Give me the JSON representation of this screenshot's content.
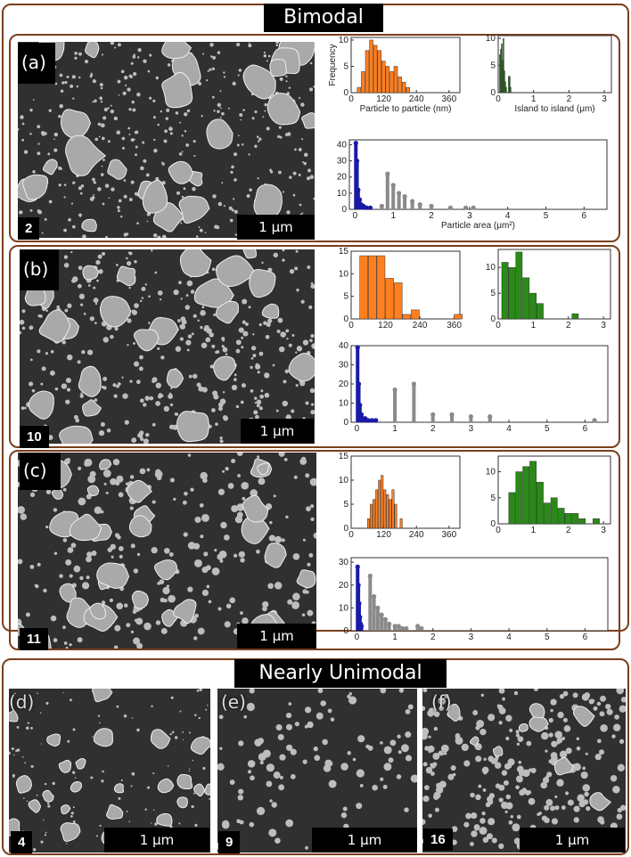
{
  "bimodal_title": "Bimodal",
  "unimodal_title": "Nearly Unimodal",
  "panels": {
    "a": {
      "label": "(a)",
      "sample": "2",
      "scale": "1 μm"
    },
    "b": {
      "label": "(b)",
      "sample": "10",
      "scale": "1 μm"
    },
    "c": {
      "label": "(c)",
      "sample": "11",
      "scale": "1 μm"
    },
    "d": {
      "label": "(d)",
      "sample": "4",
      "scale": "1 μm"
    },
    "e": {
      "label": "(e)",
      "sample": "9",
      "scale": "1 μm"
    },
    "f": {
      "label": "(f)",
      "sample": "16",
      "scale": "1 μm"
    }
  },
  "colors": {
    "frame": "#7a3e1c",
    "particle": "#ff7f1e",
    "island": "#2a8a17",
    "small_area": "#1a1aa8",
    "large_area": "#8a8a8a"
  },
  "chart_data": [
    {
      "id": "a-ptp",
      "type": "bar",
      "row": "a",
      "color": "particle",
      "xlabel": "Particle to particle (nm)",
      "ylabel": "Frequency",
      "xlim": [
        0,
        400
      ],
      "ylim": [
        0,
        10.5
      ],
      "xticks": [
        0,
        120,
        240,
        360
      ],
      "yticks": [
        0,
        5,
        10
      ],
      "bin_width": 15,
      "x": [
        30,
        45,
        60,
        75,
        90,
        105,
        120,
        135,
        150,
        165,
        180,
        195,
        210
      ],
      "values": [
        1,
        4,
        8,
        10,
        9,
        8,
        6,
        5,
        4,
        5,
        3,
        2,
        1
      ]
    },
    {
      "id": "a-iti",
      "type": "bar",
      "row": "a",
      "color": "island",
      "xlabel": "Island to island (μm)",
      "ylabel": "",
      "xlim": [
        0,
        3.2
      ],
      "ylim": [
        0,
        10.5
      ],
      "xticks": [
        0,
        1,
        2,
        3
      ],
      "yticks": [
        0,
        5,
        10
      ],
      "bin_width": 0.025,
      "x": [
        0.05,
        0.075,
        0.1,
        0.125,
        0.15,
        0.175,
        0.2,
        0.225,
        0.3,
        0.325,
        0.35
      ],
      "values": [
        7,
        8,
        9,
        6,
        10,
        4,
        2,
        1,
        3,
        3,
        1
      ]
    },
    {
      "id": "a-area",
      "type": "scatter-stem",
      "row": "a",
      "xlabel": "Particle area (μm²)",
      "ylabel": "",
      "xlim": [
        -0.15,
        6.6
      ],
      "ylim": [
        0,
        43
      ],
      "xticks": [
        0,
        1,
        2,
        3,
        4,
        5,
        6
      ],
      "yticks": [
        0,
        10,
        20,
        30,
        40
      ],
      "series": [
        {
          "color": "small_area",
          "x": [
            0.02,
            0.05,
            0.08,
            0.12,
            0.16,
            0.22,
            0.3,
            0.4
          ],
          "values": [
            41,
            30,
            12,
            6,
            3,
            2,
            1,
            1
          ]
        },
        {
          "color": "large_area",
          "x": [
            0.7,
            0.85,
            1.0,
            1.15,
            1.3,
            1.5,
            1.7,
            2.0,
            2.5,
            2.9,
            3.1
          ],
          "values": [
            2,
            22,
            15,
            10,
            8,
            5,
            3,
            2,
            1,
            1,
            1
          ]
        }
      ]
    },
    {
      "id": "b-ptp",
      "type": "bar",
      "row": "b",
      "color": "particle",
      "xlabel": "",
      "ylabel": "",
      "xlim": [
        0,
        380
      ],
      "ylim": [
        0,
        15
      ],
      "xticks": [
        0,
        120,
        240,
        360
      ],
      "yticks": [
        0,
        5,
        10,
        15
      ],
      "bin_width": 30,
      "x": [
        45,
        75,
        105,
        135,
        165,
        195,
        225,
        255,
        285,
        315,
        345,
        375
      ],
      "values": [
        14,
        14,
        14,
        9,
        8,
        1,
        2,
        0,
        0,
        0,
        0,
        1
      ]
    },
    {
      "id": "b-iti",
      "type": "bar",
      "row": "b",
      "color": "island",
      "xlabel": "",
      "ylabel": "",
      "xlim": [
        0,
        3.2
      ],
      "ylim": [
        0,
        13.5
      ],
      "xticks": [
        0,
        1,
        2,
        3
      ],
      "yticks": [
        0,
        5,
        10
      ],
      "bin_width": 0.2,
      "x": [
        0.2,
        0.4,
        0.6,
        0.8,
        1.0,
        1.2,
        1.4,
        1.6,
        1.8,
        2.0,
        2.2
      ],
      "values": [
        11,
        10,
        13,
        8,
        5,
        3,
        0,
        0,
        0,
        0,
        1
      ]
    },
    {
      "id": "b-area",
      "type": "scatter-stem",
      "row": "b",
      "xlabel": "",
      "ylabel": "",
      "xlim": [
        -0.15,
        6.6
      ],
      "ylim": [
        0,
        40
      ],
      "xticks": [
        0,
        1,
        2,
        3,
        4,
        5,
        6
      ],
      "yticks": [
        0,
        10,
        20,
        30,
        40
      ],
      "series": [
        {
          "color": "small_area",
          "x": [
            0.02,
            0.05,
            0.08,
            0.12,
            0.16,
            0.22,
            0.3,
            0.4,
            0.5
          ],
          "values": [
            39,
            20,
            9,
            4,
            2,
            2,
            1,
            1,
            1
          ]
        },
        {
          "color": "large_area",
          "x": [
            1.0,
            1.5,
            2.0,
            2.5,
            3.0,
            3.5,
            6.25
          ],
          "values": [
            17,
            20,
            4,
            4,
            3,
            3,
            1
          ]
        }
      ]
    },
    {
      "id": "c-ptp",
      "type": "bar",
      "row": "c",
      "color": "particle",
      "xlabel": "",
      "ylabel": "",
      "xlim": [
        0,
        400
      ],
      "ylim": [
        0,
        15
      ],
      "xticks": [
        0,
        120,
        240,
        360
      ],
      "yticks": [
        0,
        5,
        10,
        15
      ],
      "bin_width": 10,
      "x": [
        65,
        75,
        85,
        95,
        105,
        115,
        125,
        135,
        145,
        155,
        165,
        185
      ],
      "values": [
        2,
        5,
        6,
        8,
        10,
        11,
        8,
        7,
        6,
        8,
        5,
        2
      ]
    },
    {
      "id": "c-iti",
      "type": "bar",
      "row": "c",
      "color": "island",
      "xlabel": "",
      "ylabel": "",
      "xlim": [
        0,
        3.2
      ],
      "ylim": [
        0,
        13
      ],
      "xticks": [
        0,
        1,
        2,
        3
      ],
      "yticks": [
        0,
        5,
        10
      ],
      "bin_width": 0.2,
      "x": [
        0.4,
        0.6,
        0.8,
        1.0,
        1.2,
        1.4,
        1.6,
        1.8,
        2.0,
        2.2,
        2.4,
        2.8
      ],
      "values": [
        6,
        10,
        11,
        12,
        8,
        4,
        5,
        3,
        2,
        2,
        1,
        1
      ]
    },
    {
      "id": "c-area",
      "type": "scatter-stem",
      "row": "c",
      "xlabel": "",
      "ylabel": "",
      "xlim": [
        -0.15,
        6.6
      ],
      "ylim": [
        0,
        32
      ],
      "xticks": [
        0,
        1,
        2,
        3,
        4,
        5,
        6
      ],
      "yticks": [
        0,
        10,
        20,
        30
      ],
      "series": [
        {
          "color": "small_area",
          "x": [
            0.02,
            0.04,
            0.06,
            0.08,
            0.1,
            0.12
          ],
          "values": [
            28,
            20,
            12,
            6,
            3,
            2
          ]
        },
        {
          "color": "large_area",
          "x": [
            0.35,
            0.45,
            0.55,
            0.65,
            0.75,
            0.85,
            1.0,
            1.1,
            1.2,
            1.3,
            1.6,
            1.7
          ],
          "values": [
            24,
            15,
            10,
            7,
            5,
            3,
            2,
            2,
            1,
            1,
            2,
            1
          ]
        }
      ]
    }
  ]
}
